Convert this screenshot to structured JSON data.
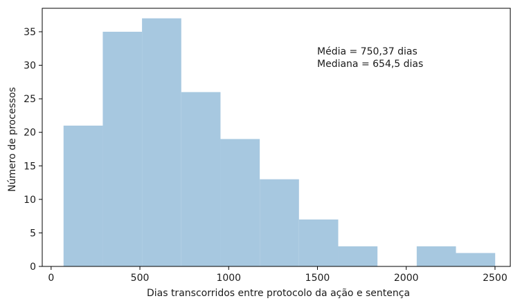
{
  "chart_data": {
    "type": "bar",
    "title": "",
    "xlabel": "Dias transcorridos entre protocolo da ação e sentença",
    "ylabel": "Número de processos",
    "xlim": [
      -50,
      2590
    ],
    "ylim": [
      0,
      38.5
    ],
    "x_ticks": [
      0,
      500,
      1000,
      1500,
      2000,
      2500
    ],
    "y_ticks": [
      0,
      5,
      10,
      15,
      20,
      25,
      30,
      35
    ],
    "bin_edges": [
      70,
      291,
      512,
      733,
      954,
      1175,
      1396,
      1617,
      1838,
      2059,
      2280,
      2501
    ],
    "values": [
      21,
      35,
      37,
      26,
      19,
      13,
      7,
      3,
      0,
      3,
      2
    ],
    "bar_color": "#a7c8e0",
    "grid": false,
    "annotations": [
      "Média = 750,37 dias",
      "Mediana = 654,5 dias"
    ]
  }
}
